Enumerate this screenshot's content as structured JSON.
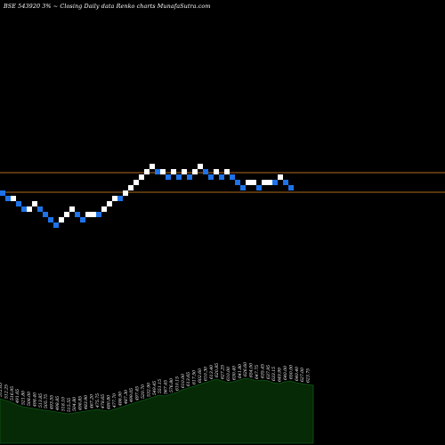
{
  "header": {
    "title": "BSE 543920  3% ~  Closing Daily data  Renko  charts MunafaSutra.com"
  },
  "colors": {
    "background": "#000000",
    "up_brick": "#ffffff",
    "down_brick": "#1e73e8",
    "reference_line": "#b26b1e",
    "volume_fill": "#062906",
    "volume_stroke": "#0f5a14"
  },
  "chart_data": {
    "type": "renko",
    "brick_size_percent": 3,
    "bricks": [
      {
        "dir": "down",
        "level": 0
      },
      {
        "dir": "down",
        "level": -1
      },
      {
        "dir": "up",
        "level": -1
      },
      {
        "dir": "down",
        "level": -2
      },
      {
        "dir": "down",
        "level": -3
      },
      {
        "dir": "up",
        "level": -3
      },
      {
        "dir": "up",
        "level": -2
      },
      {
        "dir": "down",
        "level": -3
      },
      {
        "dir": "down",
        "level": -4
      },
      {
        "dir": "down",
        "level": -5
      },
      {
        "dir": "down",
        "level": -6
      },
      {
        "dir": "up",
        "level": -5
      },
      {
        "dir": "up",
        "level": -4
      },
      {
        "dir": "up",
        "level": -3
      },
      {
        "dir": "down",
        "level": -4
      },
      {
        "dir": "down",
        "level": -5
      },
      {
        "dir": "up",
        "level": -4
      },
      {
        "dir": "up",
        "level": -4
      },
      {
        "dir": "down",
        "level": -4
      },
      {
        "dir": "up",
        "level": -3
      },
      {
        "dir": "up",
        "level": -2
      },
      {
        "dir": "up",
        "level": -1
      },
      {
        "dir": "down",
        "level": -1
      },
      {
        "dir": "up",
        "level": 0
      },
      {
        "dir": "up",
        "level": 1
      },
      {
        "dir": "up",
        "level": 2
      },
      {
        "dir": "up",
        "level": 3
      },
      {
        "dir": "up",
        "level": 4
      },
      {
        "dir": "up",
        "level": 5
      },
      {
        "dir": "down",
        "level": 4
      },
      {
        "dir": "up",
        "level": 4
      },
      {
        "dir": "down",
        "level": 3
      },
      {
        "dir": "up",
        "level": 4
      },
      {
        "dir": "down",
        "level": 3
      },
      {
        "dir": "up",
        "level": 4
      },
      {
        "dir": "down",
        "level": 3
      },
      {
        "dir": "up",
        "level": 4
      },
      {
        "dir": "up",
        "level": 5
      },
      {
        "dir": "down",
        "level": 4
      },
      {
        "dir": "down",
        "level": 3
      },
      {
        "dir": "up",
        "level": 4
      },
      {
        "dir": "down",
        "level": 3
      },
      {
        "dir": "up",
        "level": 4
      },
      {
        "dir": "down",
        "level": 3
      },
      {
        "dir": "down",
        "level": 2
      },
      {
        "dir": "down",
        "level": 1
      },
      {
        "dir": "up",
        "level": 2
      },
      {
        "dir": "up",
        "level": 2
      },
      {
        "dir": "down",
        "level": 1
      },
      {
        "dir": "up",
        "level": 2
      },
      {
        "dir": "up",
        "level": 2
      },
      {
        "dir": "down",
        "level": 2
      },
      {
        "dir": "up",
        "level": 3
      },
      {
        "dir": "down",
        "level": 2
      },
      {
        "dir": "down",
        "level": 1
      }
    ],
    "reference_lines": [
      "upper",
      "lower"
    ],
    "volume_profile": [
      30,
      28,
      26,
      23,
      21,
      20,
      19,
      18,
      17,
      16,
      15,
      14,
      13,
      14,
      15,
      16,
      17,
      18,
      17,
      16,
      18,
      20,
      22,
      24,
      26,
      28,
      30,
      32,
      34,
      33,
      35,
      37,
      40,
      42,
      44,
      46,
      48,
      50,
      52,
      50,
      48,
      49,
      51,
      53,
      52,
      50,
      51,
      50,
      48,
      47,
      49,
      50,
      48,
      47,
      46,
      45
    ],
    "volume_labels": [
      "512.65",
      "512.25",
      "516.95",
      "491.65",
      "521.80",
      "508.00",
      "498.40",
      "513.85",
      "505.75",
      "493.55",
      "498.85",
      "518.10",
      "515.55",
      "504.80",
      "498.85",
      "483.90",
      "467.20",
      "475.75",
      "478.65",
      "480.80",
      "477.70",
      "486.90",
      "487.30",
      "499.05",
      "497.45",
      "520.70",
      "532.90",
      "549.45",
      "551.15",
      "567.45",
      "576.80",
      "610.15",
      "610.00",
      "613.65",
      "617.50",
      "602.60",
      "610.30",
      "613.40",
      "620.85",
      "627.25",
      "610.00",
      "630.40",
      "641.80",
      "626.60",
      "654.00",
      "647.75",
      "635.45",
      "637.95",
      "633.15",
      "649.99",
      "640.00",
      "650.00",
      "640.40",
      "627.00",
      "623.75"
    ]
  }
}
